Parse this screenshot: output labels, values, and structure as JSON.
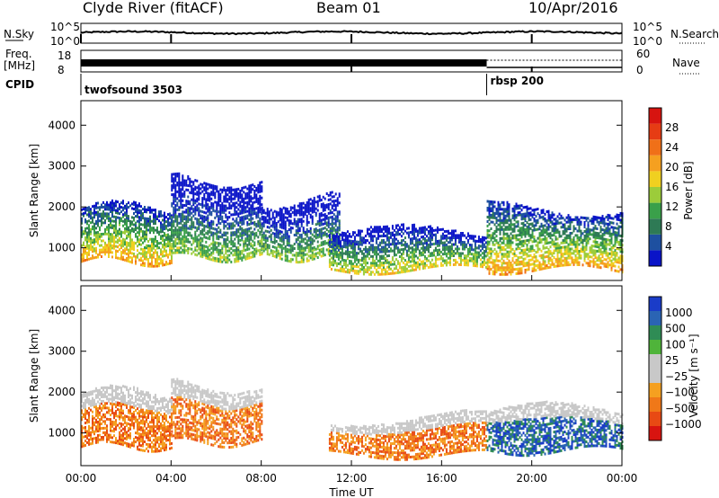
{
  "header": {
    "station": "Clyde River (fitACF)",
    "beam": "Beam 01",
    "date": "10/Apr/2016"
  },
  "top_panels": {
    "nsky_label": "N.Sky",
    "nsky_ticks": [
      "10^5",
      "10^0"
    ],
    "nsearch_label": "N.Search",
    "nsearch_ticks": [
      "10^5",
      "10^0"
    ],
    "freq_label_1": "Freq.",
    "freq_label_2": "[MHz]",
    "freq_ticks": [
      "18",
      "8"
    ],
    "nave_label": "Nave",
    "nave_ticks": [
      "60",
      "0"
    ],
    "cpid_label": "CPID",
    "cpid_segments": [
      {
        "name": "twofsound 3503",
        "start_hour": 0,
        "end_hour": 18.0
      },
      {
        "name": "rbsp 200",
        "start_hour": 18.0,
        "end_hour": 24.0
      }
    ]
  },
  "chart_data": [
    {
      "type": "heatmap",
      "quantity": "power",
      "ylabel": "Slant Range [km]",
      "xlim": [
        0,
        24
      ],
      "ylim": [
        200,
        4600
      ],
      "yticks": [
        "1000",
        "2000",
        "3000",
        "4000"
      ],
      "colorbar": {
        "label": "Power [dB]",
        "ticks": [
          "4",
          "8",
          "12",
          "16",
          "20",
          "24",
          "28"
        ],
        "range": [
          0,
          30
        ],
        "colors": [
          "#0a14c8",
          "#1e50a0",
          "#2e7a55",
          "#3aa04a",
          "#9ccc3a",
          "#f0d020",
          "#f5a020",
          "#f07018",
          "#e63c14",
          "#d71410"
        ]
      },
      "structures": [
        {
          "start_hour": 0.0,
          "end_hour": 4.0,
          "range_low": 700,
          "range_high": 2000,
          "level": 22
        },
        {
          "start_hour": 4.0,
          "end_hour": 8.0,
          "range_low": 800,
          "range_high": 2700,
          "level": 16
        },
        {
          "start_hour": 8.0,
          "end_hour": 11.5,
          "range_low": 800,
          "range_high": 2200,
          "level": 18
        },
        {
          "start_hour": 11.0,
          "end_hour": 18.0,
          "range_low": 500,
          "range_high": 1400,
          "level": 20
        },
        {
          "start_hour": 18.0,
          "end_hour": 24.0,
          "range_low": 500,
          "range_high": 2000,
          "level": 22
        }
      ]
    },
    {
      "type": "heatmap",
      "quantity": "velocity",
      "ylabel": "Slant Range [km]",
      "xlabel": "Time UT",
      "xlim": [
        0,
        24
      ],
      "ylim": [
        200,
        4600
      ],
      "yticks": [
        "1000",
        "2000",
        "3000",
        "4000"
      ],
      "xticks": [
        "00:00",
        "04:00",
        "08:00",
        "12:00",
        "16:00",
        "20:00",
        "00:00"
      ],
      "colorbar": {
        "label": "Velocity [m s⁻¹]",
        "ticks": [
          "1000",
          "500",
          "100",
          "25",
          "−25",
          "−100",
          "−500",
          "−1000"
        ],
        "colors": [
          "#1a3cc8",
          "#2a64b4",
          "#2f8c55",
          "#4fb43a",
          "#c8c8c8",
          "#c8c8c8",
          "#f5a020",
          "#f07818",
          "#e84a14",
          "#d81410"
        ]
      },
      "structures": [
        {
          "start_hour": 0.0,
          "end_hour": 4.0,
          "range_low": 700,
          "range_high": 2000,
          "velocity": -200
        },
        {
          "start_hour": 4.0,
          "end_hour": 8.0,
          "range_low": 800,
          "range_high": 2200,
          "velocity": -300
        },
        {
          "start_hour": 11.0,
          "end_hour": 18.0,
          "range_low": 500,
          "range_high": 1400,
          "velocity": -250
        },
        {
          "start_hour": 18.0,
          "end_hour": 24.0,
          "range_low": 600,
          "range_high": 1600,
          "velocity": 400
        }
      ]
    }
  ]
}
